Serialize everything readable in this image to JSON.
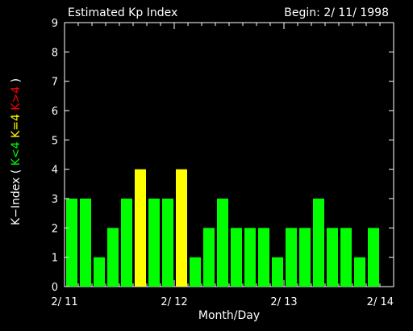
{
  "chart_data": {
    "type": "bar",
    "title": "Estimated Kp Index",
    "subtitle": "Begin: 2/ 11/ 1998",
    "xlabel": "Month/Day",
    "ylabel": {
      "prefix": "K−Index ( ",
      "green": "K<4",
      "yellow": "K=4",
      "red": "K>4",
      "suffix": " )"
    },
    "ylim": [
      0,
      9
    ],
    "yticks": [
      "0",
      "1",
      "2",
      "3",
      "4",
      "5",
      "6",
      "7",
      "8",
      "9"
    ],
    "xlim": [
      0,
      24
    ],
    "xticks": [
      {
        "pos": 0,
        "label": "2/ 11"
      },
      {
        "pos": 8,
        "label": "2/ 12"
      },
      {
        "pos": 16,
        "label": "2/ 13"
      },
      {
        "pos": 24,
        "label": "2/ 14"
      }
    ],
    "values": [
      3,
      3,
      1,
      2,
      3,
      4,
      3,
      3,
      4,
      1,
      2,
      3,
      2,
      2,
      2,
      1,
      2,
      2,
      3,
      2,
      2,
      1,
      2
    ],
    "colors": {
      "below4": "#00ff00",
      "equal4": "#ffff00",
      "above4": "#ff0000",
      "axis": "#ffffff",
      "background": "#000000"
    }
  }
}
